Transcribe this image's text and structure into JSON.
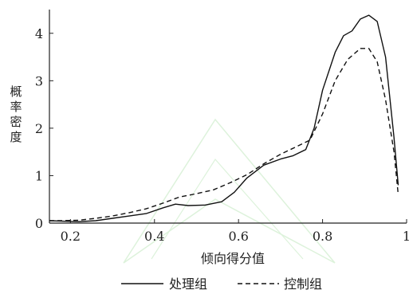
{
  "chart_data": {
    "type": "line",
    "xlabel": "倾向得分值",
    "ylabel": "概率密度",
    "xlim": [
      0.15,
      1.0
    ],
    "ylim": [
      0,
      4.5
    ],
    "x_ticks": [
      0.2,
      0.4,
      0.6,
      0.8,
      1.0
    ],
    "x_tick_labels": [
      "0.2",
      "0.4",
      "0.6",
      "0.8",
      "1"
    ],
    "y_ticks": [
      0,
      1,
      2,
      3,
      4
    ],
    "y_tick_labels": [
      "0",
      "1",
      "2",
      "3",
      "4"
    ],
    "legend_position": "bottom",
    "grid": false,
    "series": [
      {
        "name": "处理组",
        "style": "solid",
        "color": "#111111",
        "points": [
          [
            0.15,
            0.05
          ],
          [
            0.18,
            0.04
          ],
          [
            0.22,
            0.03
          ],
          [
            0.26,
            0.05
          ],
          [
            0.3,
            0.1
          ],
          [
            0.34,
            0.15
          ],
          [
            0.38,
            0.2
          ],
          [
            0.42,
            0.32
          ],
          [
            0.45,
            0.4
          ],
          [
            0.48,
            0.37
          ],
          [
            0.52,
            0.38
          ],
          [
            0.56,
            0.45
          ],
          [
            0.59,
            0.65
          ],
          [
            0.62,
            0.95
          ],
          [
            0.66,
            1.22
          ],
          [
            0.7,
            1.35
          ],
          [
            0.73,
            1.42
          ],
          [
            0.76,
            1.55
          ],
          [
            0.78,
            2.0
          ],
          [
            0.8,
            2.8
          ],
          [
            0.83,
            3.6
          ],
          [
            0.85,
            3.95
          ],
          [
            0.87,
            4.05
          ],
          [
            0.89,
            4.3
          ],
          [
            0.91,
            4.38
          ],
          [
            0.93,
            4.25
          ],
          [
            0.95,
            3.5
          ],
          [
            0.97,
            1.8
          ],
          [
            0.98,
            0.8
          ]
        ]
      },
      {
        "name": "控制组",
        "style": "dashed",
        "color": "#111111",
        "points": [
          [
            0.15,
            0.05
          ],
          [
            0.18,
            0.05
          ],
          [
            0.22,
            0.06
          ],
          [
            0.26,
            0.1
          ],
          [
            0.3,
            0.15
          ],
          [
            0.34,
            0.22
          ],
          [
            0.38,
            0.3
          ],
          [
            0.42,
            0.42
          ],
          [
            0.46,
            0.55
          ],
          [
            0.5,
            0.62
          ],
          [
            0.54,
            0.7
          ],
          [
            0.58,
            0.85
          ],
          [
            0.62,
            1.02
          ],
          [
            0.66,
            1.25
          ],
          [
            0.7,
            1.45
          ],
          [
            0.74,
            1.62
          ],
          [
            0.77,
            1.75
          ],
          [
            0.8,
            2.3
          ],
          [
            0.83,
            3.0
          ],
          [
            0.86,
            3.45
          ],
          [
            0.89,
            3.68
          ],
          [
            0.91,
            3.68
          ],
          [
            0.93,
            3.4
          ],
          [
            0.95,
            2.6
          ],
          [
            0.97,
            1.5
          ],
          [
            0.98,
            0.6
          ]
        ]
      }
    ]
  }
}
